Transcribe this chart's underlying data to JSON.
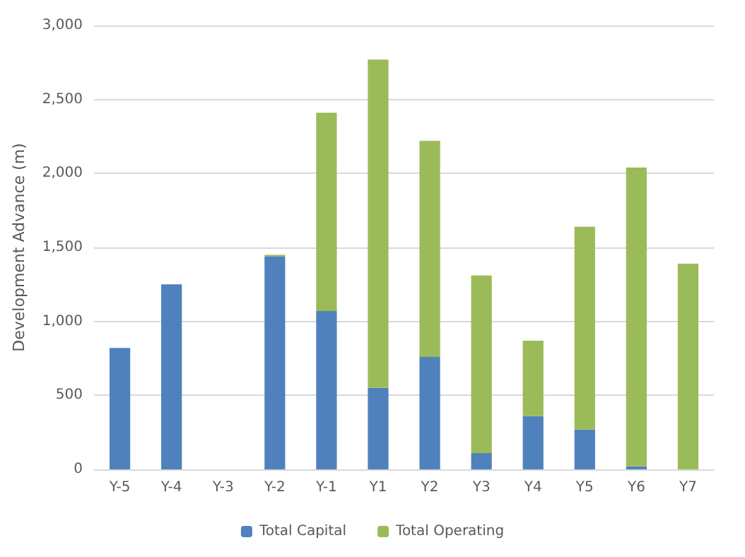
{
  "chart_data": {
    "type": "bar",
    "stacked": true,
    "ylabel": "Development Advance (m)",
    "categories": [
      "Y-5",
      "Y-4",
      "Y-3",
      "Y-2",
      "Y-1",
      "Y1",
      "Y2",
      "Y3",
      "Y4",
      "Y5",
      "Y6",
      "Y7"
    ],
    "series": [
      {
        "name": "Total Capital",
        "color": "#4f81bd",
        "values": [
          820,
          1250,
          0,
          1440,
          1070,
          550,
          760,
          110,
          360,
          270,
          20,
          0
        ]
      },
      {
        "name": "Total Operating",
        "color": "#9bbb59",
        "values": [
          0,
          0,
          0,
          10,
          1340,
          2220,
          1460,
          1200,
          510,
          1370,
          2020,
          1390
        ]
      }
    ],
    "ylim": [
      0,
      3000
    ],
    "yticks": [
      0,
      500,
      {
        "value": 1000,
        "label": "1,000"
      },
      {
        "value": 1500,
        "label": "1,500"
      },
      {
        "value": 2000,
        "label": "2,000"
      },
      {
        "value": 2500,
        "label": "2,500"
      },
      {
        "value": 3000,
        "label": "3,000"
      }
    ],
    "grid": "y",
    "legend": "bottom"
  }
}
